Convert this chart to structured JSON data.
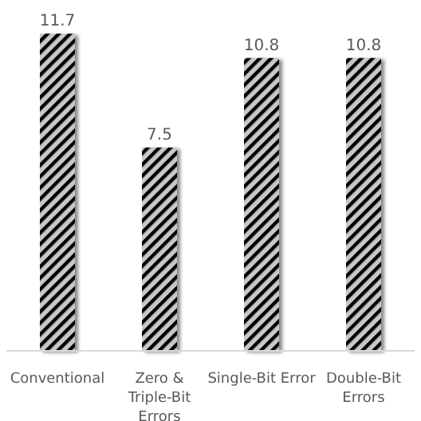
{
  "chart_data": {
    "type": "bar",
    "categories": [
      "Conventional",
      "Zero & Triple-Bit Errors",
      "Single-Bit Error",
      "Double-Bit Errors"
    ],
    "values": [
      11.7,
      7.5,
      10.8,
      10.8
    ],
    "color": "#c8c8c8",
    "data_labels": true,
    "tick_labels": "x"
  }
}
